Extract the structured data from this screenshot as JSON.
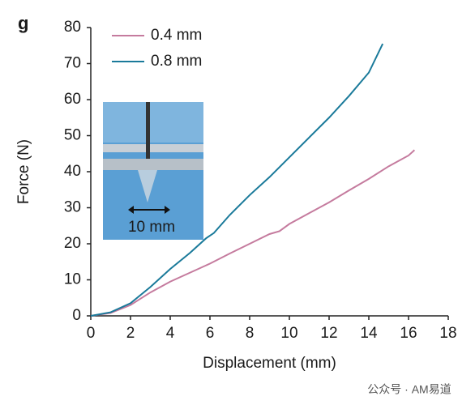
{
  "chart_data": {
    "type": "line",
    "panel_label": "g",
    "xlabel": "Displacement (mm)",
    "ylabel": "Force (N)",
    "annotations": [
      "10 mm"
    ],
    "watermark": "公众号 · AM易道",
    "xlim": [
      0,
      18
    ],
    "xticks": [
      0,
      2,
      4,
      6,
      8,
      10,
      12,
      14,
      16,
      18
    ],
    "ylim": [
      0,
      80
    ],
    "yticks": [
      0,
      10,
      20,
      30,
      40,
      50,
      60,
      70,
      80
    ],
    "grid": false,
    "legend": "upper left",
    "series": [
      {
        "name": "0.4 mm",
        "color": "#c57b9e",
        "x": [
          0,
          1,
          2,
          3,
          4,
          5,
          6,
          7,
          8,
          9,
          9.5,
          10,
          11,
          12,
          13,
          14,
          15,
          16,
          16.3
        ],
        "values": [
          0,
          0.8,
          3,
          6.5,
          9.5,
          12,
          14.5,
          17.3,
          20,
          22.7,
          23.5,
          25.5,
          28.5,
          31.5,
          34.8,
          38,
          41.5,
          44.5,
          46
        ]
      },
      {
        "name": "0.8 mm",
        "color": "#1a7a9a",
        "x": [
          0,
          1,
          2,
          3,
          4,
          5,
          5.8,
          6.2,
          7,
          8,
          9,
          10,
          11,
          12,
          13,
          14,
          14.7
        ],
        "values": [
          0,
          1,
          3.5,
          8,
          13,
          17.5,
          21.5,
          23,
          28,
          33.5,
          38.5,
          44,
          49.5,
          55,
          61,
          67.5,
          75.5
        ]
      }
    ]
  }
}
